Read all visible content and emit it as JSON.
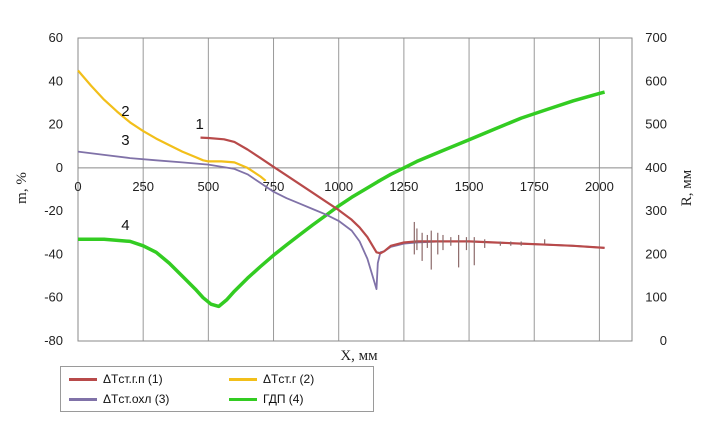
{
  "chart_data": {
    "type": "line",
    "xlabel": "X, мм",
    "ylabel_left": "m, %",
    "ylabel_right": "R, мм",
    "xlim": [
      0,
      2125
    ],
    "ylim_left": [
      -80,
      60
    ],
    "ylim_right": [
      0,
      700
    ],
    "x_ticks": [
      "0",
      "250",
      "500",
      "750",
      "1000",
      "1250",
      "1500",
      "1750",
      "2000"
    ],
    "y_left_ticks": [
      "60",
      "40",
      "20",
      "0",
      "-20",
      "-40",
      "-60",
      "-80"
    ],
    "y_right_ticks": [
      "700",
      "600",
      "500",
      "400",
      "300",
      "200",
      "100",
      "0"
    ],
    "grid": "vertical",
    "legend_position": "bottom-left",
    "series": [
      {
        "name": "ΔTст.г.п (1)",
        "curve_label": "1",
        "axis": "left",
        "color": "#b84a4a",
        "x": [
          470,
          500,
          560,
          600,
          650,
          700,
          750,
          800,
          850,
          900,
          950,
          1000,
          1050,
          1080,
          1110,
          1130,
          1145,
          1160,
          1175,
          1200,
          1250,
          1300,
          1400,
          1500,
          1600,
          1700,
          1800,
          1900,
          2020
        ],
        "y": [
          14,
          13.8,
          13.2,
          12,
          8.5,
          4.5,
          0.5,
          -3.5,
          -7.5,
          -11.5,
          -15.5,
          -19.5,
          -24,
          -27.5,
          -32,
          -36,
          -39,
          -39.5,
          -38.5,
          -36,
          -34.5,
          -34,
          -34,
          -34,
          -34.5,
          -35,
          -35.5,
          -36,
          -37
        ]
      },
      {
        "name": "ΔTст.г (2)",
        "curve_label": "2",
        "axis": "left",
        "color": "#f2bf1a",
        "x": [
          0,
          50,
          100,
          150,
          200,
          250,
          300,
          350,
          400,
          450,
          480,
          500,
          550,
          600,
          650,
          700,
          720
        ],
        "y": [
          45,
          38,
          31.5,
          26,
          21,
          17,
          13.5,
          10.5,
          7.5,
          5,
          3.5,
          3,
          3,
          2.5,
          0,
          -4,
          -6
        ]
      },
      {
        "name": "ΔTст.охл (3)",
        "curve_label": "3",
        "axis": "left",
        "color": "#8072a8",
        "x": [
          0,
          100,
          200,
          300,
          400,
          500,
          600,
          650,
          700,
          750,
          800,
          850,
          900,
          950,
          1000,
          1050,
          1080,
          1110,
          1125,
          1140,
          1145,
          1150,
          1160,
          1175,
          1200,
          1250,
          1300,
          1400,
          1500,
          1600,
          1700,
          1800,
          1900,
          2020
        ],
        "y": [
          7.5,
          6,
          4.5,
          3.5,
          2.5,
          1.5,
          -0.5,
          -3,
          -7,
          -11,
          -14,
          -16.5,
          -19,
          -21.5,
          -24.5,
          -29,
          -34,
          -42,
          -48,
          -54,
          -56,
          -44,
          -39,
          -38.5,
          -36.5,
          -35,
          -34.5,
          -34,
          -34,
          -34.5,
          -35,
          -35.5,
          -36,
          -37
        ]
      },
      {
        "name": "ГДП (4)",
        "curve_label": "4",
        "axis": "right",
        "color": "#33cc22",
        "x": [
          0,
          100,
          200,
          250,
          300,
          350,
          400,
          450,
          480,
          510,
          540,
          570,
          600,
          650,
          700,
          750,
          800,
          850,
          900,
          950,
          1000,
          1050,
          1100,
          1150,
          1200,
          1250,
          1300,
          1400,
          1500,
          1600,
          1700,
          1800,
          1900,
          2000,
          2020
        ],
        "y": [
          235,
          235,
          230,
          220,
          205,
          180,
          150,
          120,
          100,
          85,
          80,
          95,
          115,
          145,
          172,
          198,
          222,
          245,
          268,
          290,
          312,
          332,
          350,
          368,
          385,
          400,
          415,
          440,
          465,
          490,
          515,
          535,
          555,
          572,
          575
        ]
      }
    ],
    "spikes": {
      "x": [
        1290,
        1300,
        1320,
        1340,
        1355,
        1380,
        1400,
        1430,
        1460,
        1490,
        1520,
        1560,
        1620,
        1660,
        1700,
        1790
      ],
      "top": [
        -25,
        -28,
        -30,
        -31,
        -29,
        -30,
        -31,
        -32,
        -31,
        -32,
        -32,
        -33,
        -34,
        -34,
        -34,
        -33
      ],
      "bottom": [
        -40,
        -38,
        -43,
        -37,
        -47,
        -40,
        -38,
        -36,
        -46,
        -38,
        -45,
        -37,
        -36,
        -36,
        -36,
        -35
      ]
    }
  }
}
